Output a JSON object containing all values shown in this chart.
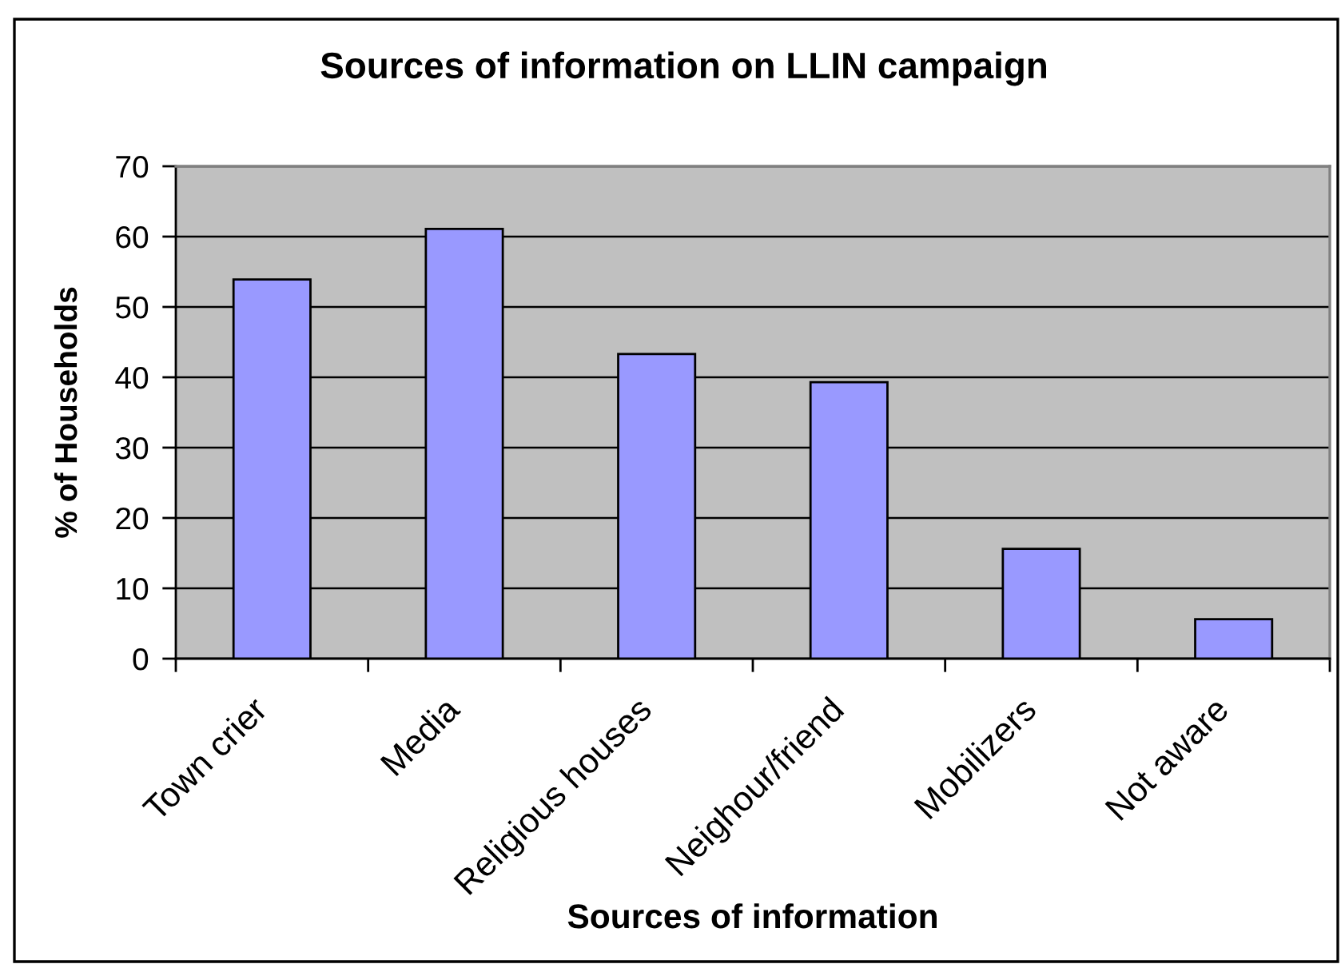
{
  "chart_data": {
    "type": "bar",
    "title": "Sources of information on LLIN campaign",
    "xlabel": "Sources of information",
    "ylabel": "% of Households",
    "categories": [
      "Town crier",
      "Media",
      "Religious houses",
      "Neighour/friend",
      "Mobilizers",
      "Not aware"
    ],
    "values": [
      53.9,
      61.1,
      43.3,
      39.3,
      15.6,
      5.6
    ],
    "color": "#9999ff",
    "ylim": [
      0,
      70
    ],
    "yticks": [
      0,
      10,
      20,
      30,
      40,
      50,
      60,
      70
    ],
    "grid": "y"
  }
}
